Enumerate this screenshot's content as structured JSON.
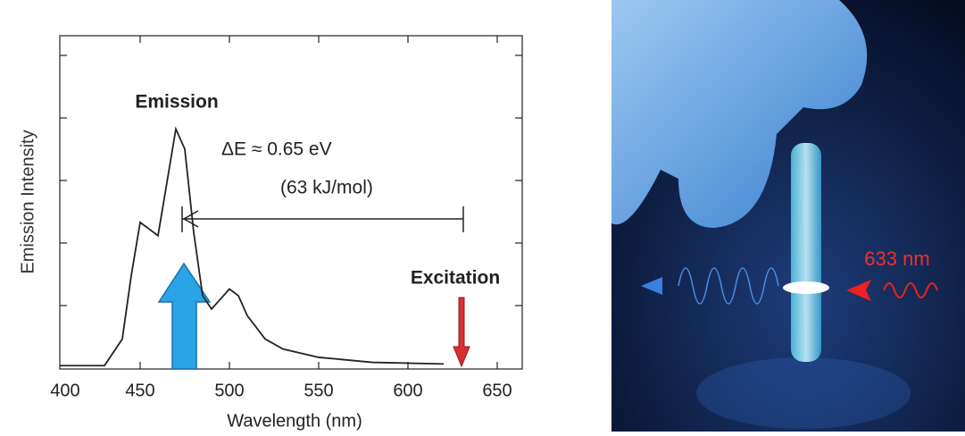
{
  "chart_data": {
    "type": "line",
    "xlabel": "Wavelength (nm)",
    "ylabel": "Emission Intensity",
    "x": [
      405,
      420,
      430,
      440,
      445,
      450,
      455,
      460,
      465,
      470,
      475,
      480,
      485,
      490,
      495,
      500,
      505,
      510,
      520,
      530,
      550,
      580,
      620
    ],
    "series": [
      {
        "name": "Emission",
        "color": "#222222",
        "values": [
          0.01,
          0.01,
          0.01,
          0.09,
          0.28,
          0.44,
          0.42,
          0.4,
          0.56,
          0.72,
          0.66,
          0.41,
          0.22,
          0.18,
          0.21,
          0.24,
          0.22,
          0.16,
          0.09,
          0.06,
          0.035,
          0.02,
          0.015
        ]
      }
    ],
    "xlim": [
      405,
      664
    ],
    "ylim": [
      0,
      1
    ],
    "xticks": [
      450,
      500,
      550,
      600,
      650
    ],
    "annotations": [
      "Emission",
      "ΔE ≈ 0.65 eV",
      "(63 kJ/mol)",
      "Excitation"
    ]
  },
  "photo": {
    "label": "633 nm"
  }
}
